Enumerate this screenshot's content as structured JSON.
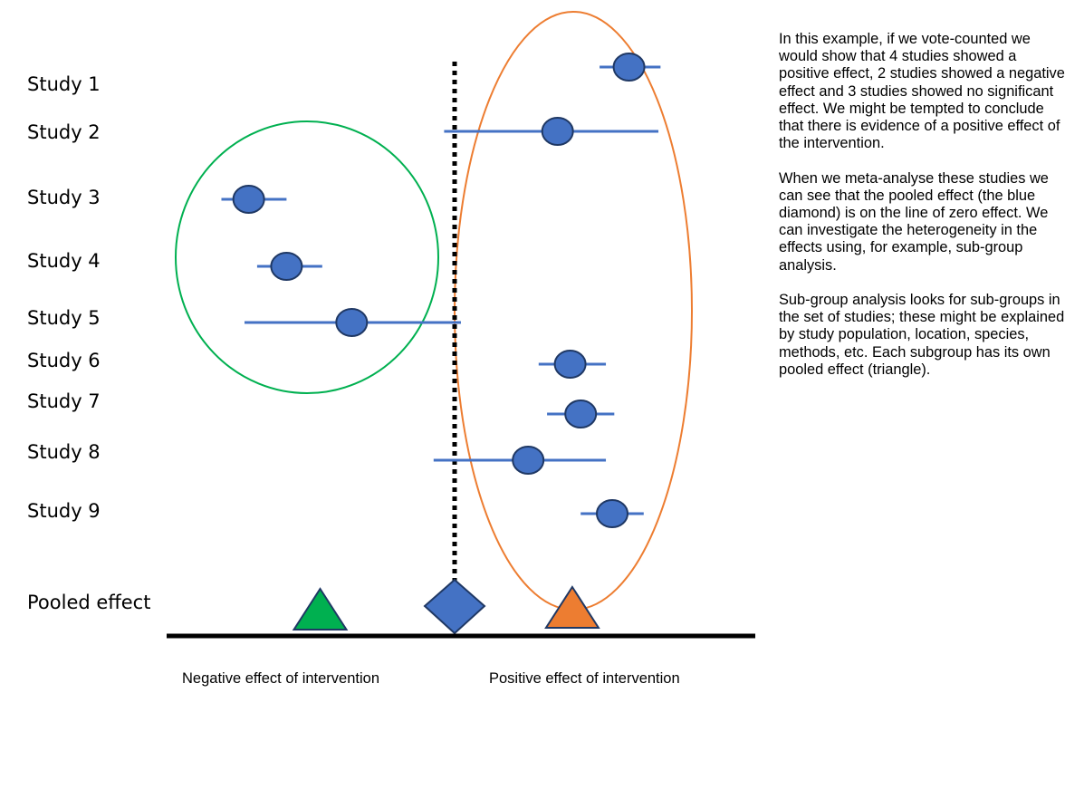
{
  "studies": [
    {
      "label": "Study 1",
      "estimate": 0.83,
      "ci": [
        0.69,
        0.98
      ]
    },
    {
      "label": "Study 2",
      "estimate": 0.49,
      "ci": [
        -0.05,
        0.97
      ]
    },
    {
      "label": "Study 3",
      "estimate": -0.98,
      "ci": [
        -1.11,
        -0.8
      ]
    },
    {
      "label": "Study 4",
      "estimate": -0.8,
      "ci": [
        -0.94,
        -0.63
      ]
    },
    {
      "label": "Study 5",
      "estimate": -0.49,
      "ci": [
        -1.0,
        0.03
      ]
    },
    {
      "label": "Study 6",
      "estimate": 0.55,
      "ci": [
        0.4,
        0.72
      ]
    },
    {
      "label": "Study 7",
      "estimate": 0.6,
      "ci": [
        0.44,
        0.76
      ]
    },
    {
      "label": "Study 8",
      "estimate": 0.35,
      "ci": [
        -0.1,
        0.72
      ]
    },
    {
      "label": "Study 9",
      "estimate": 0.75,
      "ci": [
        0.6,
        0.9
      ]
    }
  ],
  "pooled": {
    "label": "Pooled effect",
    "overall_estimate": 0.0,
    "negative_subgroup_estimate": -0.64,
    "positive_subgroup_estimate": 0.56
  },
  "axis": {
    "negative_label": "Negative effect of intervention",
    "positive_label": "Positive effect of intervention"
  },
  "colors": {
    "marker": "#4472c4",
    "marker_stroke": "#1f3864",
    "ci_line": "#4472c4",
    "negative_group": "#00b050",
    "positive_group": "#ed7d31",
    "axis": "#000000"
  },
  "notes": [
    "In this example, if we vote-counted we would show that 4 studies showed a positive effect, 2 studies showed a negative effect and 3 studies showed no significant effect. We might be tempted to conclude that there is evidence of a positive effect of the intervention.",
    "When we meta-analyse these studies we can see that the pooled effect (the blue diamond) is on the line of zero effect. We can investigate the heterogeneity in the effects using, for example, sub-group analysis.",
    "Sub-group analysis looks for sub-groups in the set of studies; these might be explained by study population, location, species, methods, etc. Each subgroup has its own pooled effect (triangle)."
  ]
}
